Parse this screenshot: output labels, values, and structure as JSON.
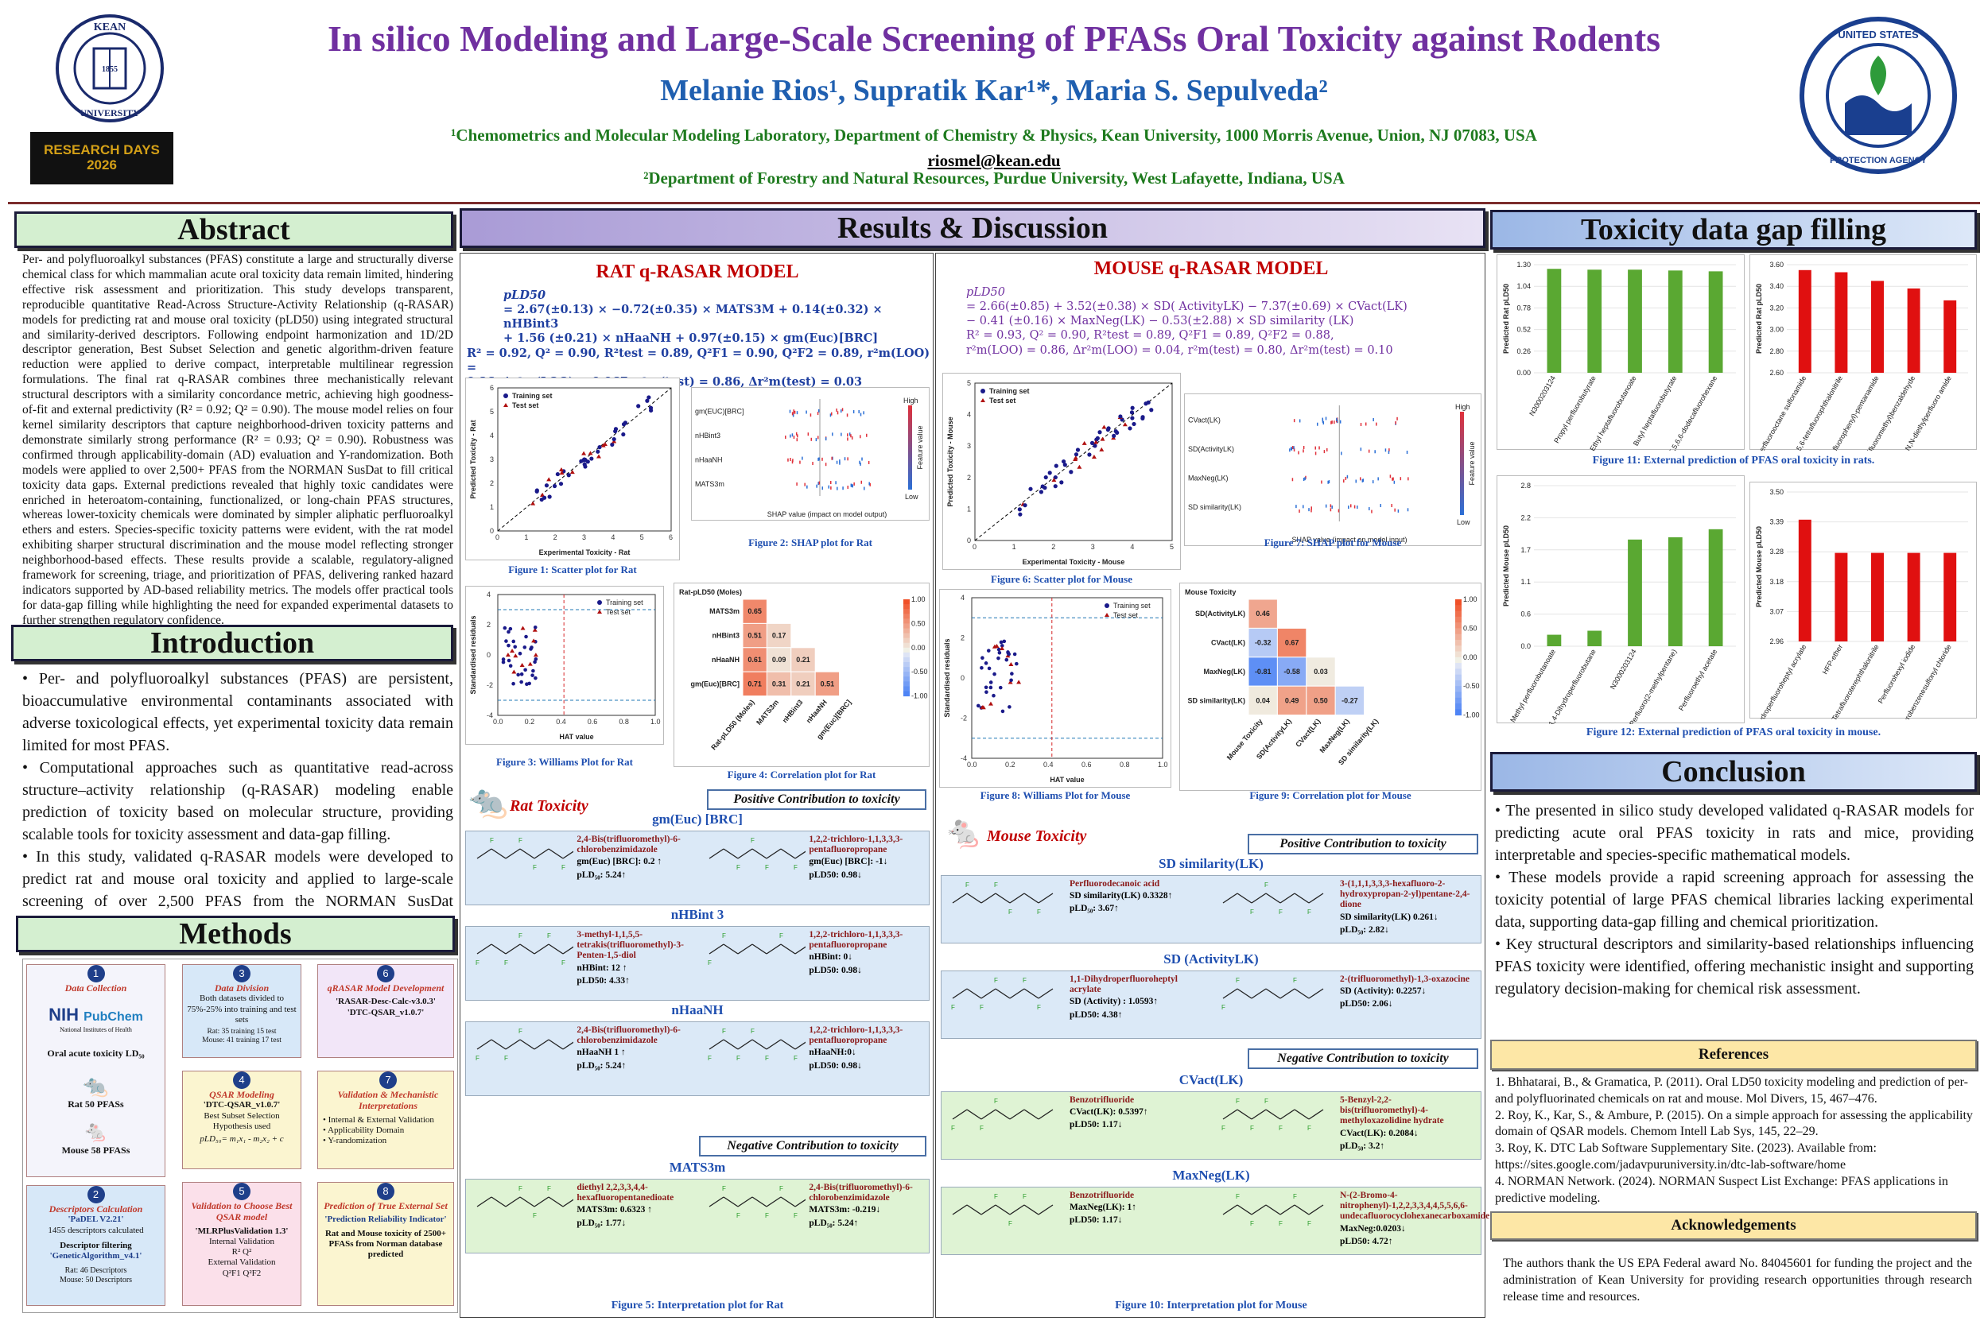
{
  "header": {
    "title": "In silico Modeling and Large-Scale Screening of PFASs Oral Toxicity against Rodents",
    "authors": "Melanie Rios¹, Supratik Kar¹*, Maria S. Sepulveda²",
    "affil1": "¹Chemometrics and Molecular Modeling Laboratory, Department of Chemistry & Physics, Kean University,  1000 Morris Avenue, Union, NJ 07083, USA ",
    "email": "riosmel@kean.edu",
    "affil2": "²Department of Forestry and Natural Resources,  Purdue University, West Lafayette, Indiana, USA",
    "logo_left_text": "KEAN UNIVERSITY",
    "logo_left_year": "1855",
    "research_days": "RESEARCH DAYS 2026",
    "logo_right_text": "UNITED STATES ENVIRONMENTAL PROTECTION AGENCY"
  },
  "abstract": {
    "heading": "Abstract",
    "text": "Per- and polyfluoroalkyl substances (PFAS) constitute a large and structurally diverse chemical class for which mammalian acute oral toxicity data remain limited, hindering effective risk assessment and prioritization. This study develops transparent, reproducible quantitative Read-Across Structure-Activity Relationship (q-RASAR) models for predicting rat and mouse oral toxicity (pLD50) using integrated structural and similarity-derived descriptors. Following endpoint harmonization and 1D/2D descriptor generation, Best Subset Selection and genetic algorithm-driven feature reduction were applied to derive compact, interpretable multilinear regression formulations. The final rat q-RASAR combines three mechanistically relevant structural descriptors with a similarity concordance metric, achieving high goodness-of-fit and external predictivity (R² = 0.92; Q² = 0.90). The mouse model relies on four kernel similarity descriptors that capture neighborhood-driven toxicity patterns and demonstrate similarly strong performance (R² = 0.93; Q² = 0.90). Robustness was confirmed through applicability-domain (AD) evaluation and Y-randomization. Both models were applied to over 2,500+ PFAS from the NORMAN SusDat to fill critical toxicity data gaps. External predictions revealed that highly toxic candidates were enriched in heteroatom-containing, functionalized, or long-chain PFAS structures, whereas lower-toxicity chemicals were dominated by simpler aliphatic perfluoroalkyl ethers and esters. Species-specific toxicity patterns were evident, with the rat model exhibiting sharper structural discrimination and the mouse model reflecting stronger neighborhood-based effects. These results provide a scalable, regulatory-aligned framework for screening, triage, and prioritization of PFAS, delivering ranked hazard indicators supported by AD-based reliability metrics. The models offer practical tools for data-gap filling while highlighting the need for expanded experimental datasets to further strengthen regulatory confidence."
  },
  "introduction": {
    "heading": "Introduction",
    "bullets": [
      "• Per- and polyfluoroalkyl substances (PFAS) are persistent, bioaccumulative environmental contaminants associated with adverse toxicological effects, yet experimental toxicity data remain limited for most PFAS.",
      "• Computational approaches such as quantitative read-across structure–activity relationship (q-RASAR) modeling enable prediction of toxicity based on molecular structure, providing scalable tools for toxicity assessment and data-gap filling.",
      "• In this study, validated q-RASAR models were developed to predict rat and mouse oral toxicity and applied to large-scale screening of over 2,500 PFAS from the NORMAN SusDat database to identify and prioritize potential toxicity hazards."
    ]
  },
  "methods": {
    "heading": "Methods",
    "steps": [
      {
        "n": "1",
        "title": "Data Collection",
        "lines": [
          "NIH",
          "PubChem",
          "National Institutes of Health",
          "Oral acute toxicity LD₅₀",
          "Rat 50 PFASs",
          "Mouse 58 PFASs"
        ]
      },
      {
        "n": "2",
        "title": "Descriptors Calculation",
        "lines": [
          "'PaDEL V2.21'",
          "1455 descriptors calculated",
          "Descriptor filtering",
          "'GeneticAlgorithm_v4.1'",
          "Rat: 46 Descriptors",
          "Mouse: 50 Descriptors"
        ]
      },
      {
        "n": "3",
        "title": "Data Division",
        "lines": [
          "Both datasets divided to 75%-25% into training and test sets",
          "Rat: 35 training 15 test",
          "Mouse: 41 training 17 test"
        ]
      },
      {
        "n": "4",
        "title": "QSAR Modeling",
        "lines": [
          "'DTC-QSAR_v1.0.7'",
          "Best Subset Selection",
          "Hypothesis used",
          "pLD₅₀= m₁x₁ - m₂x₂ + c"
        ]
      },
      {
        "n": "5",
        "title": "Validation to Choose Best QSAR model",
        "lines": [
          "'MLRPlusValidation 1.3'",
          "Internal Validation",
          "R²   Q²",
          "External Validation",
          "Q²F1   Q²F2"
        ]
      },
      {
        "n": "6",
        "title": "qRASAR Model Development",
        "lines": [
          "'RASAR-Desc-Calc-v3.0.3'",
          "'DTC-QSAR_v1.0.7'"
        ]
      },
      {
        "n": "7",
        "title": "Validation & Mechanistic Interpretations",
        "lines": [
          "• Internal & External Validation",
          "• Applicability Domain",
          "• Y-randomization"
        ]
      },
      {
        "n": "8",
        "title": "Prediction of True External Set",
        "lines": [
          "'Prediction Reliability Indicator'",
          "Rat and Mouse toxicity of 2500+ PFASs from Norman database predicted"
        ]
      }
    ]
  },
  "results": {
    "heading": "Results & Discussion",
    "rat": {
      "title": "RAT q-RASAR MODEL",
      "eq_lhs": "pLD50",
      "eq1": "= 2.67(±0.13) × −0.72(±0.35) × MATS3M + 0.14(±0.32) × nHBint3",
      "eq2": "+ 1.56 (±0.21) × nHaaNH + 0.97(±0.15) × gm(Euc)[BRC]",
      "stats1": "R² = 0.92, Q² = 0.90, R²test = 0.89, Q²F1 = 0.90, Q²F2 = 0.89,  r²m(LOO) =",
      "stats2": "0.86, Δr²m(LOO) = 0.067,  r²m(test) = 0.86, Δr²m(test) = 0.03",
      "fig1": "Figure 1: Scatter plot for Rat",
      "fig2": "Figure 2: SHAP plot for Rat",
      "fig3": "Figure 3: Williams Plot for Rat",
      "fig4": "Figure 4: Correlation plot for Rat",
      "fig5": "Figure 5: Interpretation plot for Rat",
      "tox_label": "Rat Toxicity",
      "pos_tag": "Positive Contribution to toxicity",
      "neg_tag": "Negative Contribution to toxicity",
      "scatter_xlabel": "Experimental Toxicity - Rat",
      "scatter_ylabel": "Predicted Toxicity - Rat",
      "williams_xlabel": "HAT value",
      "williams_ylabel": "Standardised residuals",
      "shap_xlabel": "SHAP value (impact on model output)",
      "shap_features": [
        "gm(EUC)[BRC]",
        "nHBint3",
        "nHaaNH",
        "MATS3m"
      ],
      "corr_title": "Rat-pLD50 (Moles)",
      "corr_labels": [
        "Rat-pLD50 (Moles)",
        "MATS3m",
        "nHBint3",
        "nHaaNH",
        "gm(Euc)[BRC]"
      ],
      "corr_values": [
        "0.65",
        "0.51",
        "0.17",
        "0.61",
        "0.09",
        "0.21",
        "0.71",
        "0.31",
        "0.21",
        "0.51"
      ],
      "groups": [
        {
          "name": "gm(Euc) [BRC]",
          "mols": [
            {
              "name": "2,4-Bis(trifluoromethyl)-6-chlorobenzimidazole",
              "v1": "gm(Euc) [BRC]: 0.2 ↑",
              "v2": "pLD₅₀: 5.24↑"
            },
            {
              "name": "1,2,2-trichloro-1,1,3,3,3-pentafluoropropane",
              "v1": "gm(Euc) [BRC]: -1↓",
              "v2": "pLD50: 0.98↓"
            }
          ]
        },
        {
          "name": "nHBint 3",
          "mols": [
            {
              "name": "3-methyl-1,1,5,5-tetrakis(trifluoromethyl)-3-Penten-1,5-diol",
              "v1": "nHBint: 12 ↑",
              "v2": "pLD50: 4.33↑"
            },
            {
              "name": "1,2,2-trichloro-1,1,3,3,3-pentafluoropropane",
              "v1": "nHBint: 0↓",
              "v2": "pLD50: 0.98↓"
            }
          ]
        },
        {
          "name": "nHaaNH",
          "mols": [
            {
              "name": "2,4-Bis(trifluoromethyl)-6-chlorobenzimidazole",
              "v1": "nHaaNH 1 ↑",
              "v2": "pLD₅₀: 5.24↑"
            },
            {
              "name": "1,2,2-trichloro-1,1,3,3,3-pentafluoropropane",
              "v1": "nHaaNH:0↓",
              "v2": "pLD50: 0.98↓"
            }
          ]
        },
        {
          "name": "MATS3m",
          "mols": [
            {
              "name": "diethyl 2,2,3,3,4,4-hexafluoropentanedioate",
              "v1": "MATS3m: 0.6323 ↑",
              "v2": "pLD₅₀: 1.77↓"
            },
            {
              "name": "2,4-Bis(trifluoromethyl)-6-chlorobenzimidazole",
              "v1": "MATS3m: -0.219↓",
              "v2": "pLD₅₀: 5.24↑"
            }
          ]
        }
      ]
    },
    "mouse": {
      "title": "MOUSE q-RASAR MODEL",
      "eq_lhs": "pLD50",
      "eq1": "= 2.66(±0.85) + 3.52(±0.38) × SD( ActivityLK) − 7.37(±0.69) × CVact(LK)",
      "eq2": "− 0.41 (±0.16) × MaxNeg(LK) − 0.53(±2.88) × SD similarity (LK)",
      "stats1": "R² = 0.93, Q² = 0.90, R²test = 0.89, Q²F1 = 0.89, Q²F2 = 0.88,",
      "stats2": "r²m(LOO) = 0.86, Δr²m(LOO) = 0.04,        r²m(test) = 0.80, Δr²m(test) = 0.10",
      "fig6": "Figure 6: Scatter plot for Mouse",
      "fig7": "Figure 7: SHAP plot for Mouse",
      "fig8": "Figure 8: Williams Plot for Mouse",
      "fig9": "Figure 9: Correlation plot for Mouse",
      "fig10": "Figure 10: Interpretation plot for Mouse",
      "tox_label": "Mouse Toxicity",
      "pos_tag": "Positive Contribution to toxicity",
      "neg_tag": "Negative Contribution to toxicity",
      "scatter_xlabel": "Experimental Toxicity - Mouse",
      "scatter_ylabel": "Predicted Toxicity - Mouse",
      "williams_xlabel": "HAT value",
      "williams_ylabel": "Standardised residuals",
      "shap_xlabel": "SHAP value (impact on model input)",
      "shap_features": [
        "CVact(LK)",
        "SD(ActivityLK)",
        "MaxNeg(LK)",
        "SD similarity(LK)"
      ],
      "corr_title": "Mouse Toxicity",
      "corr_labels": [
        "Mouse Toxicity",
        "SD(ActivityLK)",
        "CVact(LK)",
        "MaxNeg(LK)",
        "SD similarity(LK)"
      ],
      "corr_values": [
        "0.46",
        "-0.32",
        "0.67",
        "-0.81",
        "-0.58",
        "0.03",
        "0.04",
        "0.49",
        "0.50",
        "-0.27"
      ],
      "groups": [
        {
          "name": "SD similarity(LK)",
          "mols": [
            {
              "name": "Perfluorodecanoic acid",
              "v1": "SD similarity(LK) 0.3328↑",
              "v2": "pLD₅₀: 3.67↑"
            },
            {
              "name": "3-(1,1,1,3,3,3-hexafluoro-2-hydroxypropan-2-yl)pentane-2,4-dione",
              "v1": "SD similarity(LK) 0.261↓",
              "v2": "pLD₅₀: 2.82↓"
            }
          ]
        },
        {
          "name": "SD (ActivityLK)",
          "mols": [
            {
              "name": "1,1-Dihydroperfluoroheptyl acrylate",
              "v1": "SD (Activity) : 1.0593↑",
              "v2": "pLD50: 4.38↑"
            },
            {
              "name": "2-(trifluoromethyl)-1,3-oxazocine",
              "v1": "SD (Activity): 0.2257↓",
              "v2": "pLD50: 2.06↓"
            }
          ]
        },
        {
          "name": "CVact(LK)",
          "mols": [
            {
              "name": "Benzotrifluoride",
              "v1": "CVact(LK): 0.5397↑",
              "v2": "pLD50: 1.17↓"
            },
            {
              "name": "5-Benzyl-2,2-bis(trifluoromethyl)-4-methyloxazolidine hydrate",
              "v1": "CVact(LK): 0.2084↓",
              "v2": "pLD₅₀: 3.2↑"
            }
          ]
        },
        {
          "name": "MaxNeg(LK)",
          "mols": [
            {
              "name": "Benzotrifluoride",
              "v1": "MaxNeg(LK): 1↑",
              "v2": "pLD50: 1.17↓"
            },
            {
              "name": "N-(2-Bromo-4-nitrophenyl)-1,2,2,3,3,4,4,5,5,6,6-undecafluorocyclohexanecarboxamide",
              "v1": "MaxNeg:0.0203↓",
              "v2": "pLD50: 4.72↑"
            }
          ]
        }
      ]
    },
    "legend_train": "Training set",
    "legend_test": "Test set",
    "shap_high": "High",
    "shap_low": "Low",
    "shap_feature_value": "Feature value"
  },
  "gapfill": {
    "heading": "Toxicity data gap filling",
    "fig11": "Figure 11: External prediction of PFAS oral toxicity in rats.",
    "fig12": "Figure 12: External prediction of PFAS oral toxicity in mouse.",
    "ylabel_rat": "Predicted Rat pLD₅₀",
    "ylabel_mouse": "Predicted Mouse pLD₅₀"
  },
  "chart_data": [
    {
      "type": "bar",
      "title": "",
      "ylabel": "Predicted Rat pLD50",
      "ylim": [
        0,
        1.3
      ],
      "categories": [
        "N3000203124",
        "Propyl perfluorobutyrate",
        "Ethyl heptafluorobutanoate",
        "Butyl heptafluorobutyrate",
        "1,1,2,2,3,3,4,4,5,5,6,6-dodecafluorohexane"
      ],
      "values": [
        1.25,
        1.24,
        1.24,
        1.23,
        1.22
      ],
      "color": "#5aa832"
    },
    {
      "type": "bar",
      "title": "",
      "ylabel": "Predicted Rat pLD50",
      "ylim": [
        2.6,
        3.6
      ],
      "categories": [
        "Perfluorooctane sulfonamide",
        "3,4,5,6-tetrafluorophthalonitrile",
        "N-(4-fluorophenyl)-pentanamide",
        "2,3-bis(trifluoromethyl)benzaldehyde",
        "N,N-diethylperfluoro amide"
      ],
      "values": [
        3.55,
        3.53,
        3.45,
        3.38,
        3.27
      ],
      "color": "#e01010"
    },
    {
      "type": "bar",
      "title": "",
      "ylabel": "Predicted Mouse pLD50",
      "ylim": [
        0,
        2.8
      ],
      "categories": [
        "Methyl perfluorobutanoate",
        "1,4-Dihydroperfluorobutane",
        "N3000203124",
        "Perfluoro(2-methylpentane)",
        "Perfluoroethyl acetate"
      ],
      "values": [
        0.2,
        0.27,
        1.86,
        1.9,
        2.04
      ],
      "color": "#5aa832"
    },
    {
      "type": "bar",
      "title": "",
      "ylabel": "Predicted Mouse pLD50",
      "ylim": [
        2.96,
        3.5
      ],
      "categories": [
        "1,1-Dihydroperfluoroheptyl acrylate",
        "HFP-ether",
        "Tetrafluoroterephthalonitrile",
        "Perfluorohexyl iodide",
        "Pentafluorobenzenesulfonyl chloride"
      ],
      "values": [
        3.4,
        3.28,
        3.28,
        3.28,
        3.28
      ],
      "color": "#e01010"
    }
  ],
  "conclusion": {
    "heading": "Conclusion",
    "bullets": [
      "• The presented in silico study developed validated q-RASAR models for predicting acute oral PFAS toxicity in rats and mice, providing interpretable and species-specific mathematical models.",
      "• These models provide a rapid screening approach for assessing the toxicity potential of large PFAS chemical libraries lacking experimental data, supporting data-gap filling and chemical prioritization.",
      "• Key structural descriptors and similarity-based relationships influencing PFAS toxicity were identified, offering mechanistic insight and supporting regulatory decision-making for chemical risk assessment."
    ]
  },
  "references": {
    "heading": "References",
    "items": [
      "1. Bhhatarai, B., & Gramatica, P. (2011). Oral LD50 toxicity modeling and prediction of per- and polyfluorinated chemicals on rat and mouse. Mol Divers, 15, 467–476.",
      "2. Roy, K., Kar, S., & Ambure, P. (2015). On a simple approach for assessing the applicability domain of QSAR models. Chemom Intell Lab Sys, 145, 22–29.",
      "3. Roy, K. DTC Lab Software Supplementary Site. (2023). Available from: https://sites.google.com/jadavpuruniversity.in/dtc-lab-software/home",
      "4. NORMAN Network. (2024). NORMAN Suspect List Exchange: PFAS applications in predictive modeling."
    ]
  },
  "acknowledgements": {
    "heading": "Acknowledgements",
    "text": "The authors thank the US EPA Federal award No. 84045601 for funding the project and the administration of Kean University for providing research opportunities through research release time and resources."
  },
  "colors": {
    "title": "#7030a0",
    "authors": "#1f5fb0",
    "affil": "#1e7a1e",
    "train": "#1a1a8a",
    "test": "#b01010"
  }
}
